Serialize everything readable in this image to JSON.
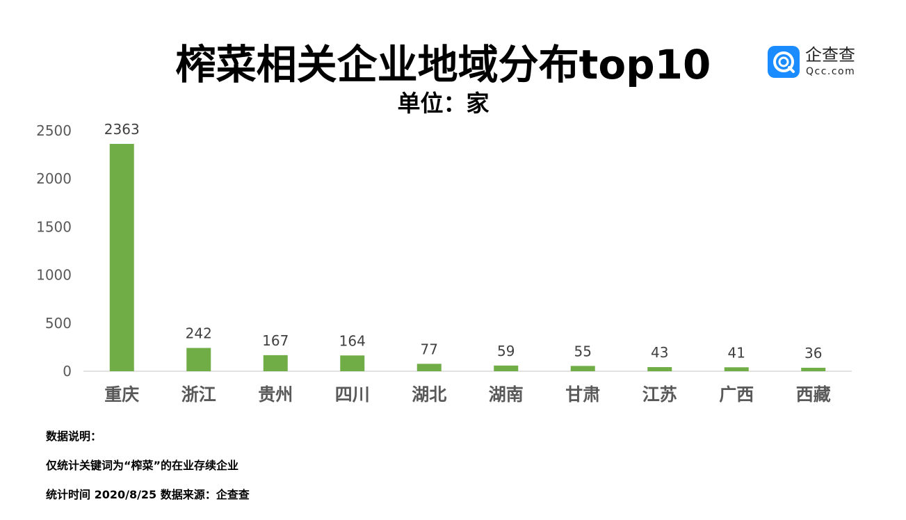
{
  "header": {
    "title": "榨菜相关企业地域分布top10",
    "subtitle": "单位：家"
  },
  "logo": {
    "name": "企查查",
    "url": "Qcc.com",
    "icon": "qcc-logo-icon",
    "color": "#1a8cff"
  },
  "chart_data": {
    "type": "bar",
    "title": "榨菜相关企业地域分布top10",
    "subtitle": "单位：家",
    "categories": [
      "重庆",
      "浙江",
      "贵州",
      "四川",
      "湖北",
      "湖南",
      "甘肃",
      "江苏",
      "广西",
      "西藏"
    ],
    "values": [
      2363,
      242,
      167,
      164,
      77,
      59,
      55,
      43,
      41,
      36
    ],
    "data_labels": [
      "2363",
      "242",
      "167",
      "164",
      "77",
      "59",
      "55",
      "43",
      "41",
      "36"
    ],
    "y_ticks": [
      "0",
      "500",
      "1000",
      "1500",
      "2000",
      "2500"
    ],
    "ylim": [
      0,
      2500
    ],
    "grid": false,
    "bar_color": "#70ad47"
  },
  "notes": {
    "heading": "数据说明：",
    "line1": "仅统计关键词为“榨菜”的在业存续企业",
    "line2": "统计时间 2020/8/25    数据来源：企查查"
  }
}
